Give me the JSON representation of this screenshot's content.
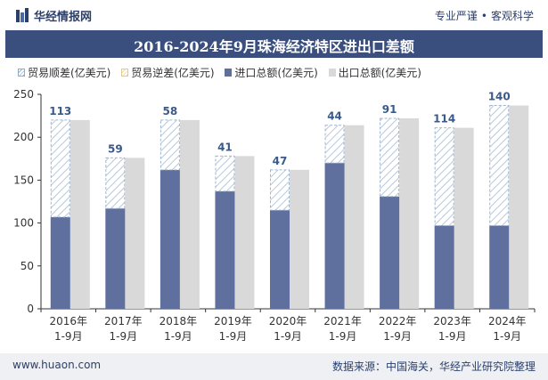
{
  "header": {
    "brand": "华经情报网",
    "slogan_left": "专业严谨",
    "slogan_right": "客观科学"
  },
  "legend": {
    "surplus": "贸易顺差(亿美元)",
    "deficit": "贸易逆差(亿美元)",
    "import": "进口总额(亿美元)",
    "export": "出口总额(亿美元)"
  },
  "footer": {
    "site": "www.huaon.com",
    "source": "数据来源：中国海关，华经产业研究院整理"
  },
  "colors": {
    "import": "#5f6f9e",
    "export": "#d9d9d9",
    "surplus_stroke": "#9fb6cf",
    "label": "#3a5a8c",
    "title_bg": "#3a4f7e"
  },
  "chart_data": {
    "type": "bar",
    "title": "2016-2024年9月珠海经济特区进出口差额",
    "categories": [
      [
        "2016年",
        "1-9月"
      ],
      [
        "2017年",
        "1-9月"
      ],
      [
        "2018年",
        "1-9月"
      ],
      [
        "2019年",
        "1-9月"
      ],
      [
        "2020年",
        "1-9月"
      ],
      [
        "2021年",
        "1-9月"
      ],
      [
        "2022年",
        "1-9月"
      ],
      [
        "2023年",
        "1-9月"
      ],
      [
        "2024年",
        "1-9月"
      ]
    ],
    "series": [
      {
        "name": "进口总额(亿美元)",
        "values": [
          107,
          117,
          162,
          137,
          115,
          170,
          131,
          97,
          97
        ]
      },
      {
        "name": "出口总额(亿美元)",
        "values": [
          220,
          176,
          220,
          178,
          162,
          214,
          222,
          211,
          237
        ]
      },
      {
        "name": "贸易顺差(亿美元)",
        "values": [
          113,
          59,
          58,
          41,
          47,
          44,
          91,
          114,
          140
        ]
      }
    ],
    "ylim": [
      0,
      250
    ],
    "yticks": [
      0,
      50,
      100,
      150,
      200,
      250
    ],
    "grid": false,
    "legend_position": "top-left"
  }
}
